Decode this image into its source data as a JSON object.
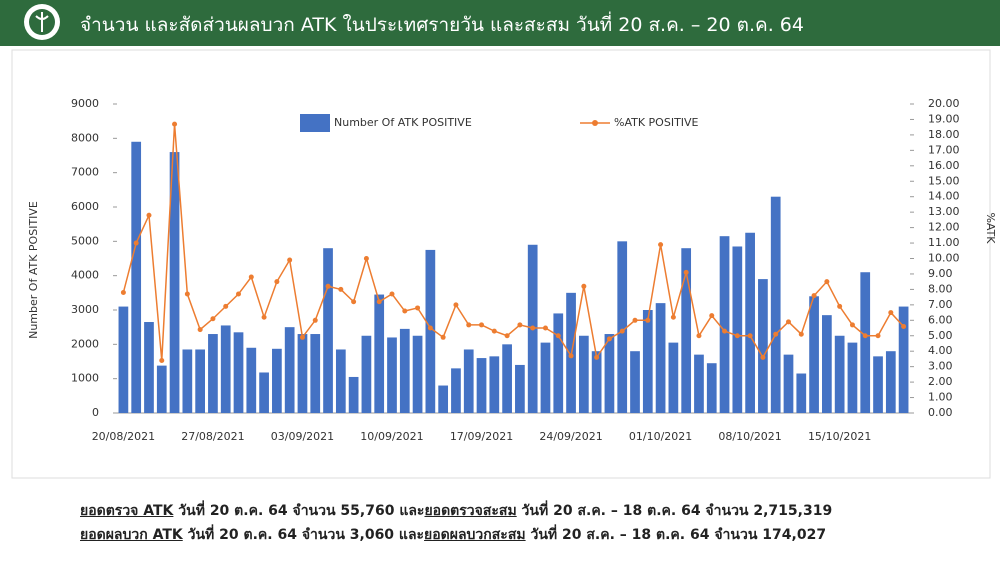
{
  "header": {
    "title": "จำนวน และสัดส่วนผลบวก ATK ในประเทศรายวัน และสะสม วันที่ 20 ส.ค. – 20 ต.ค. 64"
  },
  "chart_data": {
    "type": "bar-line",
    "y_label": "Number Of ATK POSITIVE",
    "y2_label": "%ATK",
    "categories": [
      "20/08/2021",
      null,
      null,
      null,
      null,
      null,
      null,
      "27/08/2021",
      null,
      null,
      null,
      null,
      null,
      null,
      "03/09/2021",
      null,
      null,
      null,
      null,
      null,
      null,
      "10/09/2021",
      null,
      null,
      null,
      null,
      null,
      null,
      "17/09/2021",
      null,
      null,
      null,
      null,
      null,
      null,
      "24/09/2021",
      null,
      null,
      null,
      null,
      null,
      null,
      "01/10/2021",
      null,
      null,
      null,
      null,
      null,
      null,
      "08/10/2021",
      null,
      null,
      null,
      null,
      null,
      null,
      "15/10/2021",
      null,
      null,
      null,
      null,
      null
    ],
    "series": [
      {
        "name": "Number Of ATK POSITIVE",
        "color": "#4472c4",
        "kind": "bar",
        "values": [
          3100,
          7900,
          2650,
          1380,
          7600,
          1850,
          1850,
          2300,
          2550,
          2350,
          1900,
          1180,
          1870,
          2500,
          2300,
          2300,
          4800,
          1850,
          1050,
          2250,
          3450,
          2200,
          2450,
          2250,
          4750,
          800,
          1300,
          1850,
          1600,
          1650,
          2000,
          1400,
          4900,
          2050,
          2900,
          3500,
          2250,
          1800,
          2300,
          5000,
          1800,
          3000,
          3200,
          2050,
          4800,
          1700,
          1450,
          5150,
          4850,
          5250,
          3900,
          6300,
          1700,
          1150,
          3400,
          2850,
          2250,
          2050,
          4100,
          1650,
          1800,
          3100
        ]
      },
      {
        "name": "%ATK POSITIVE",
        "color": "#ed7d31",
        "kind": "line",
        "axis": "y2",
        "values": [
          7.8,
          11.0,
          12.8,
          3.4,
          18.7,
          7.7,
          5.4,
          6.1,
          6.9,
          7.7,
          8.8,
          6.2,
          8.5,
          9.9,
          4.9,
          6.0,
          8.2,
          8.0,
          7.2,
          10.0,
          7.2,
          7.7,
          6.6,
          6.8,
          5.5,
          4.9,
          7.0,
          5.7,
          5.7,
          5.3,
          5.0,
          5.7,
          5.5,
          5.5,
          5.0,
          3.7,
          8.2,
          3.6,
          4.8,
          5.3,
          6.0,
          6.0,
          10.9,
          6.2,
          9.1,
          5.0,
          6.3,
          5.3,
          5.0,
          5.0,
          3.6,
          5.1,
          5.9,
          5.1,
          7.6,
          8.5,
          6.9,
          5.7,
          5.0,
          5.0,
          6.5,
          5.6
        ]
      }
    ],
    "ylim": [
      0,
      9000
    ],
    "yticks": [
      0,
      1000,
      2000,
      3000,
      4000,
      5000,
      6000,
      7000,
      8000,
      9000
    ],
    "y2lim": [
      0,
      20
    ],
    "y2ticks": [
      {
        "value": 0,
        "label": "0.00"
      },
      {
        "value": 1,
        "label": "1.00"
      },
      {
        "value": 2,
        "label": "2.00"
      },
      {
        "value": 3,
        "label": "3.00"
      },
      {
        "value": 4,
        "label": "4.00"
      },
      {
        "value": 5,
        "label": "5.00"
      },
      {
        "value": 6,
        "label": "6.00"
      },
      {
        "value": 7,
        "label": "7.00"
      },
      {
        "value": 8,
        "label": "8.00"
      },
      {
        "value": 9,
        "label": "9.00"
      },
      {
        "value": 10,
        "label": "10.00"
      },
      {
        "value": 11,
        "label": "11.00"
      },
      {
        "value": 12,
        "label": "12.00"
      },
      {
        "value": 13,
        "label": "13.00"
      },
      {
        "value": 14,
        "label": "14.00"
      },
      {
        "value": 15,
        "label": "15.00"
      },
      {
        "value": 16,
        "label": "16.00"
      },
      {
        "value": 17,
        "label": "17.00"
      },
      {
        "value": 18,
        "label": "18.00"
      },
      {
        "value": 19,
        "label": "19.00"
      },
      {
        "value": 20,
        "label": "20.00"
      }
    ],
    "legend": "top"
  },
  "footer": {
    "lines": [
      [
        {
          "text": "ยอดตรวจ ATK",
          "underline": true
        },
        {
          "text": " วันที่ 20 ต.ค. 64 จำนวน 55,760 และ",
          "underline": false
        },
        {
          "text": "ยอดตรวจสะสม",
          "underline": true
        },
        {
          "text": " วันที่ 20 ส.ค. – 18 ต.ค. 64 จำนวน 2,715,319",
          "underline": false
        }
      ],
      [
        {
          "text": "ยอดผลบวก ATK",
          "underline": true
        },
        {
          "text": " วันที่ 20 ต.ค. 64 จำนวน 3,060 และ",
          "underline": false
        },
        {
          "text": "ยอดผลบวกสะสม",
          "underline": true
        },
        {
          "text": " วันที่ 20 ส.ค. – 18 ต.ค. 64 จำนวน 174,027",
          "underline": false
        }
      ]
    ]
  }
}
